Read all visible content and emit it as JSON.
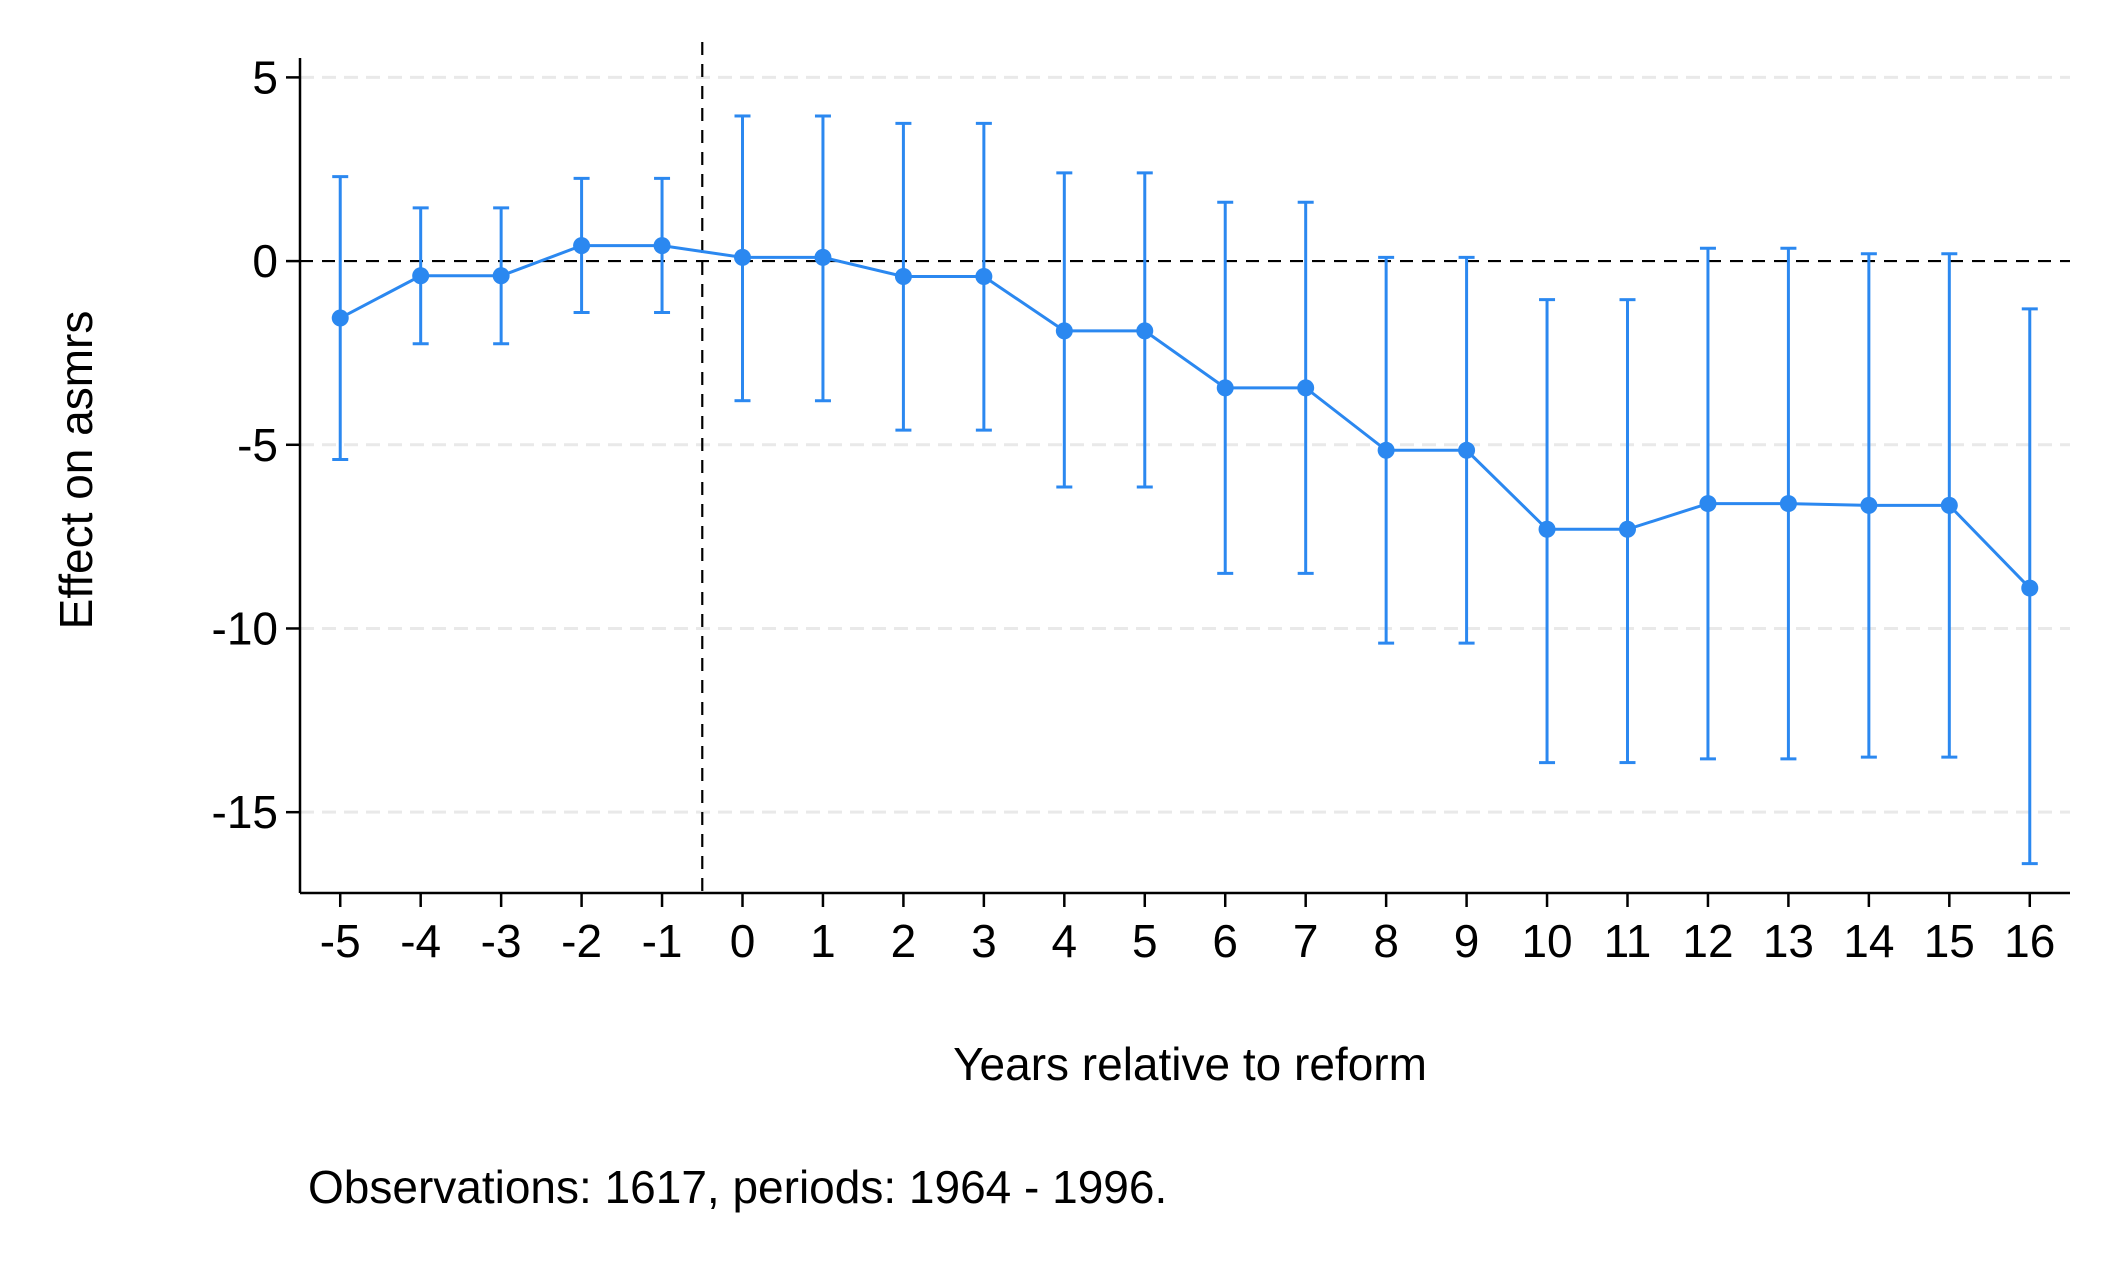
{
  "chart_data": {
    "type": "scatter",
    "xlabel": "Years relative to reform",
    "ylabel": "Effect on asmrs",
    "note": "Observations: 1617, periods: 1964 - 1996.",
    "x": [
      -5,
      -4,
      -3,
      -2,
      -1,
      0,
      1,
      2,
      3,
      4,
      5,
      6,
      7,
      8,
      9,
      10,
      11,
      12,
      13,
      14,
      15,
      16
    ],
    "xticks": [
      "-5",
      "-4",
      "-3",
      "-2",
      "-1",
      "0",
      "1",
      "2",
      "3",
      "4",
      "5",
      "6",
      "7",
      "8",
      "9",
      "10",
      "11",
      "12",
      "13",
      "14",
      "15",
      "16"
    ],
    "y": [
      -1.55,
      -0.4,
      -0.4,
      0.42,
      0.42,
      0.1,
      0.1,
      -0.42,
      -0.42,
      -1.9,
      -1.9,
      -3.45,
      -3.45,
      -5.15,
      -5.15,
      -7.3,
      -7.3,
      -6.6,
      -6.6,
      -6.65,
      -6.65,
      -8.9
    ],
    "ci_low": [
      -5.4,
      -2.25,
      -2.25,
      -1.4,
      -1.4,
      -3.8,
      -3.8,
      -4.6,
      -4.6,
      -6.15,
      -6.15,
      -8.5,
      -8.5,
      -10.4,
      -10.4,
      -13.65,
      -13.65,
      -13.55,
      -13.55,
      -13.5,
      -13.5,
      -16.4
    ],
    "ci_high": [
      2.3,
      1.45,
      1.45,
      2.25,
      2.25,
      3.95,
      3.95,
      3.75,
      3.75,
      2.4,
      2.4,
      1.6,
      1.6,
      0.1,
      0.1,
      -1.05,
      -1.05,
      0.35,
      0.35,
      0.2,
      0.2,
      -1.3
    ],
    "yticks": [
      5,
      0,
      -5,
      -10,
      -15
    ],
    "ytick_labels": [
      "5",
      "0",
      "-5",
      "-10",
      "-15"
    ],
    "ylim": [
      -17.2,
      5.8
    ],
    "xlim": [
      -5.5,
      16.5
    ],
    "reference_lines": {
      "horizontal_y": 0,
      "vertical_x": -0.5
    },
    "grid": "horizontal dashed",
    "colors": {
      "series": "#2b88f0",
      "grid": "#e9e9e9",
      "axis": "#000000"
    }
  }
}
